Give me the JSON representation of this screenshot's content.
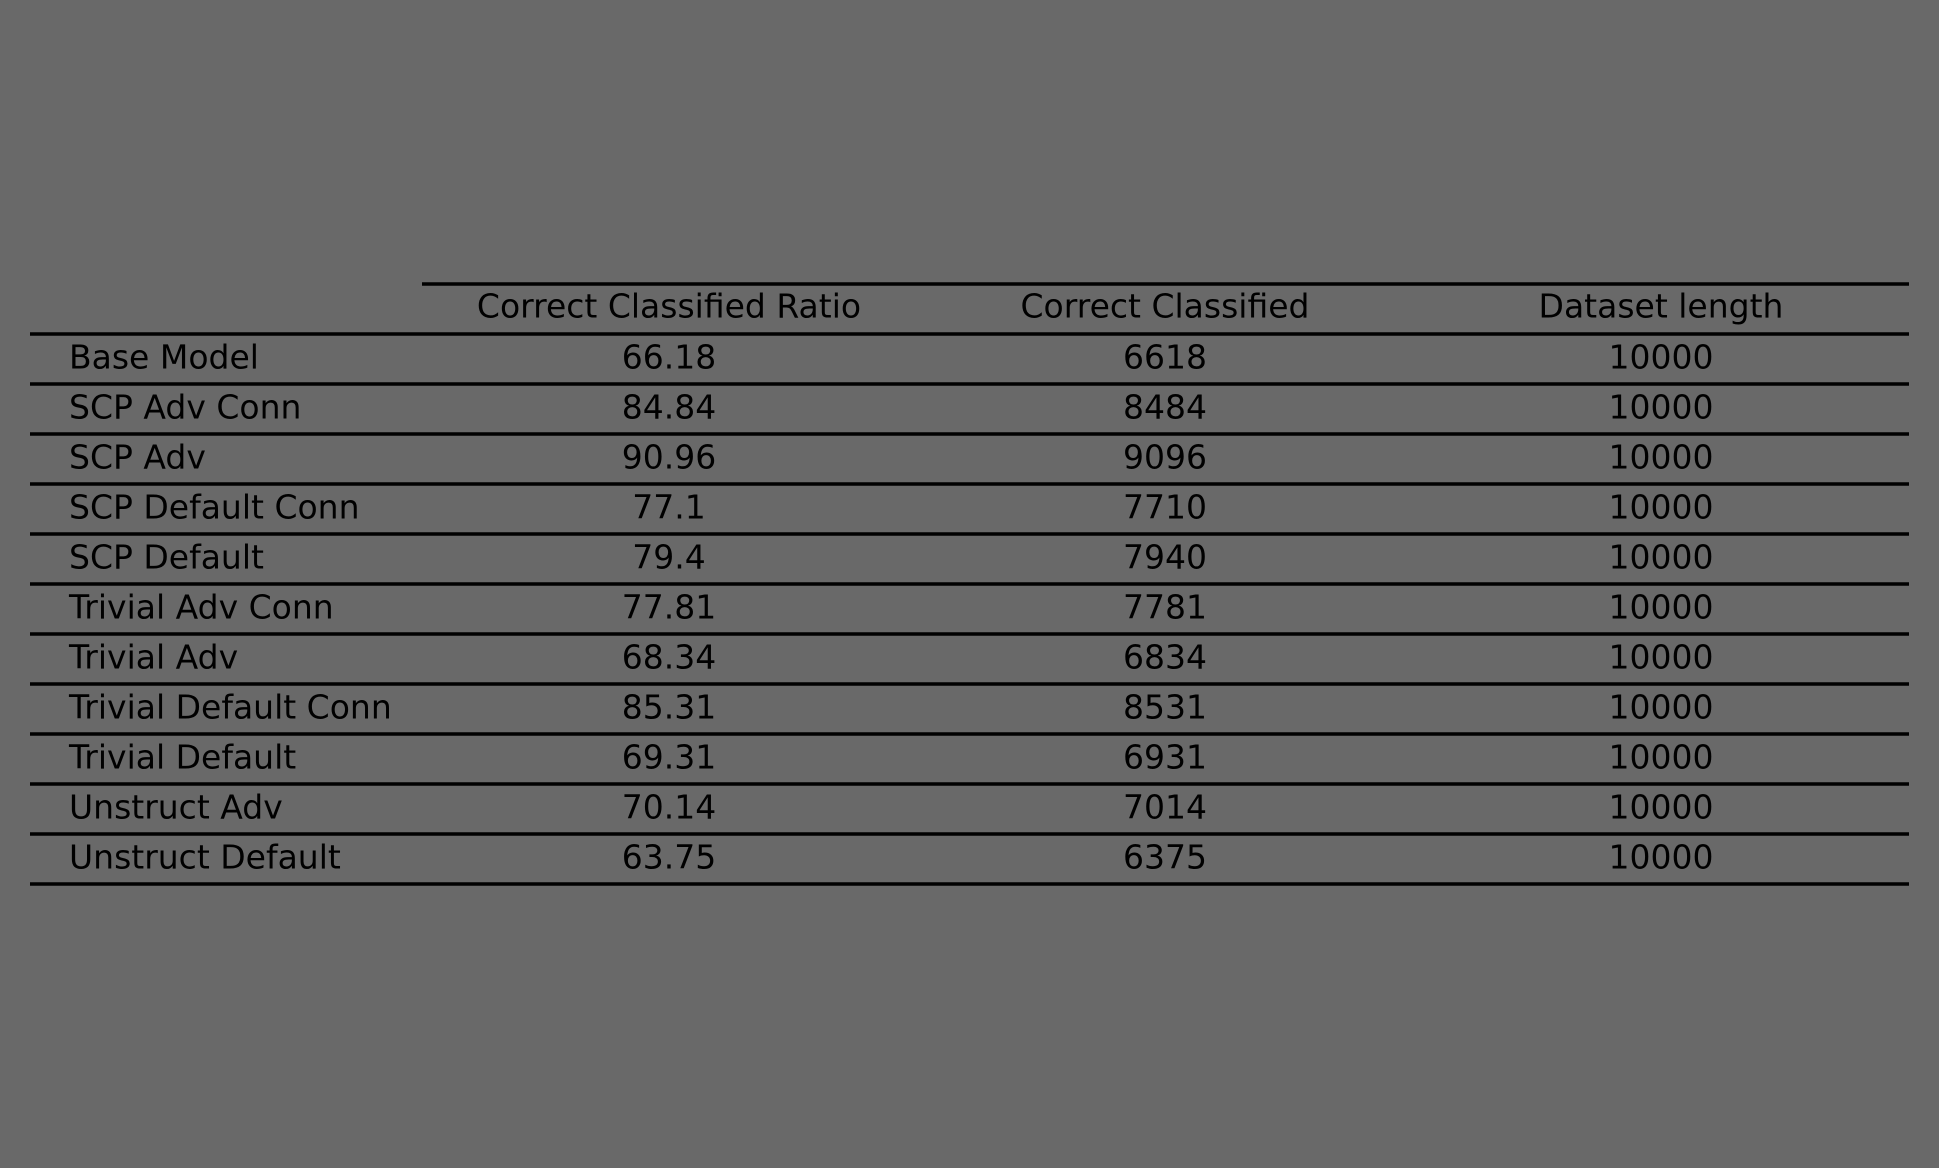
{
  "chart_data": {
    "type": "table",
    "columns": [
      "",
      "Correct Classified Ratio",
      "Correct Classified",
      "Dataset length"
    ],
    "rows": [
      {
        "label": "Base Model",
        "values": [
          "66.18",
          "6618",
          "10000"
        ]
      },
      {
        "label": "SCP Adv Conn",
        "values": [
          "84.84",
          "8484",
          "10000"
        ]
      },
      {
        "label": "SCP Adv",
        "values": [
          "90.96",
          "9096",
          "10000"
        ]
      },
      {
        "label": "SCP Default Conn",
        "values": [
          "77.1",
          "7710",
          "10000"
        ]
      },
      {
        "label": "SCP Default",
        "values": [
          "79.4",
          "7940",
          "10000"
        ]
      },
      {
        "label": "Trivial Adv Conn",
        "values": [
          "77.81",
          "7781",
          "10000"
        ]
      },
      {
        "label": "Trivial Adv",
        "values": [
          "68.34",
          "6834",
          "10000"
        ]
      },
      {
        "label": "Trivial Default Conn",
        "values": [
          "85.31",
          "8531",
          "10000"
        ]
      },
      {
        "label": "Trivial Default",
        "values": [
          "69.31",
          "6931",
          "10000"
        ]
      },
      {
        "label": "Unstruct Adv",
        "values": [
          "70.14",
          "7014",
          "10000"
        ]
      },
      {
        "label": "Unstruct Default",
        "values": [
          "63.75",
          "6375",
          "10000"
        ]
      }
    ]
  },
  "colors": {
    "background": "#696969",
    "text": "#000000",
    "rules": "#000000"
  }
}
